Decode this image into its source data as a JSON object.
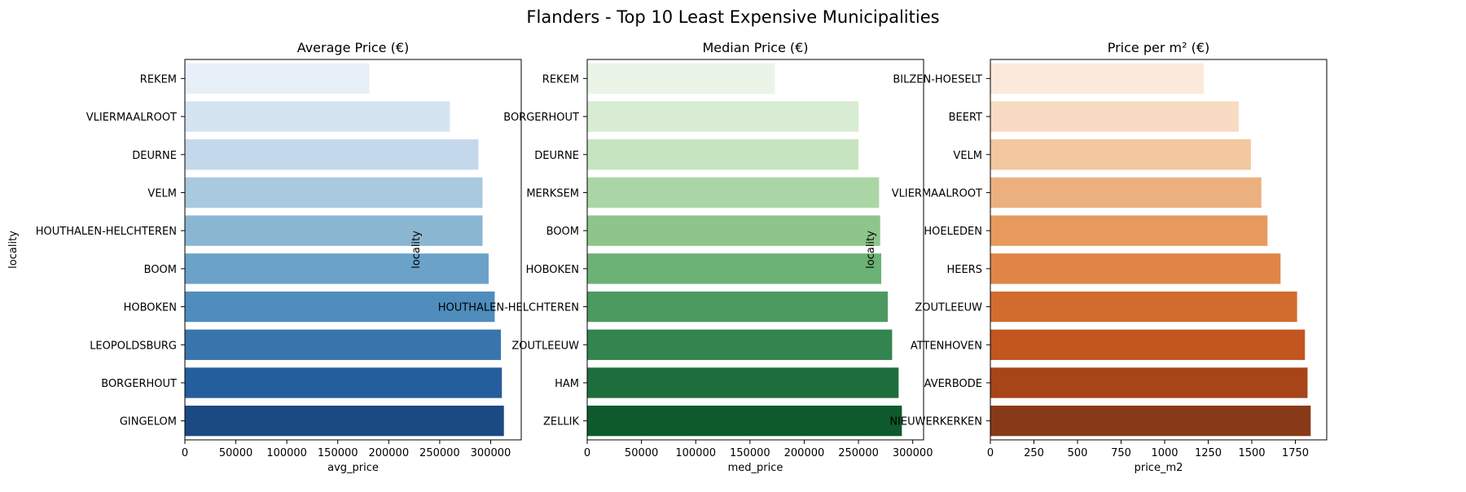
{
  "figure": {
    "title": "Flanders - Top 10 Least Expensive Municipalities"
  },
  "chart_data": [
    {
      "type": "bar",
      "orientation": "horizontal",
      "title": "Average Price (€)",
      "xlabel": "avg_price",
      "ylabel": "locality",
      "xlim": [
        0,
        330000
      ],
      "xticks": [
        0,
        50000,
        100000,
        150000,
        200000,
        250000,
        300000
      ],
      "xtick_labels": [
        "0",
        "50000",
        "100000",
        "150000",
        "200000",
        "250000",
        "300000"
      ],
      "categories": [
        "REKEM",
        "VLIERMAALROOT",
        "DEURNE",
        "VELM",
        "HOUTHALEN-HELCHTEREN",
        "BOOM",
        "HOBOKEN",
        "LEOPOLDSBURG",
        "BORGERHOUT",
        "GINGELOM"
      ],
      "values": [
        181000,
        260000,
        288000,
        292000,
        292000,
        298000,
        304000,
        310000,
        311000,
        313000
      ],
      "colors": [
        "#e7f0f9",
        "#d5e4f1",
        "#c3d8ea",
        "#a8c9de",
        "#8bb6d2",
        "#6aa2c8",
        "#4f8dbd",
        "#3875ad",
        "#255e9c",
        "#1b4a83"
      ]
    },
    {
      "type": "bar",
      "orientation": "horizontal",
      "title": "Median Price (€)",
      "xlabel": "med_price",
      "ylabel": "locality",
      "xlim": [
        0,
        310000
      ],
      "xticks": [
        0,
        50000,
        100000,
        150000,
        200000,
        250000,
        300000
      ],
      "xtick_labels": [
        "0",
        "50000",
        "100000",
        "150000",
        "200000",
        "250000",
        "300000"
      ],
      "categories": [
        "REKEM",
        "BORGERHOUT",
        "DEURNE",
        "MERKSEM",
        "BOOM",
        "HOBOKEN",
        "HOUTHALEN-HELCHTEREN",
        "ZOUTLEEUW",
        "HAM",
        "ZELLIK"
      ],
      "values": [
        173000,
        250000,
        250000,
        269000,
        270000,
        271000,
        277000,
        281000,
        287000,
        290000
      ],
      "colors": [
        "#eaf5e7",
        "#d8ecd3",
        "#c5e4bf",
        "#aad6a5",
        "#8ec58b",
        "#6cb176",
        "#4c9a60",
        "#33844f",
        "#1d6e3c",
        "#0e5a2c"
      ]
    },
    {
      "type": "bar",
      "orientation": "horizontal",
      "title": "Price per m² (€)",
      "xlabel": "price_m2",
      "ylabel": "locality",
      "xlim": [
        0,
        1930
      ],
      "xticks": [
        0,
        250,
        500,
        750,
        1000,
        1250,
        1500,
        1750
      ],
      "xtick_labels": [
        "0",
        "250",
        "500",
        "750",
        "1000",
        "1250",
        "1500",
        "1750"
      ],
      "categories": [
        "BILZEN-HOESELT",
        "BEERT",
        "VELM",
        "VLIERMAALROOT",
        "HOELEDEN",
        "HEERS",
        "ZOUTLEEUW",
        "ATTENHOVEN",
        "AVERBODE",
        "NIEUWERKERKEN"
      ],
      "values": [
        1225,
        1425,
        1495,
        1555,
        1590,
        1665,
        1760,
        1805,
        1820,
        1838
      ],
      "colors": [
        "#fbe9d9",
        "#f7dbc2",
        "#f3c79f",
        "#ecb07f",
        "#e69a5d",
        "#e08545",
        "#d26c2e",
        "#c1561f",
        "#a74418",
        "#883a18"
      ]
    }
  ]
}
